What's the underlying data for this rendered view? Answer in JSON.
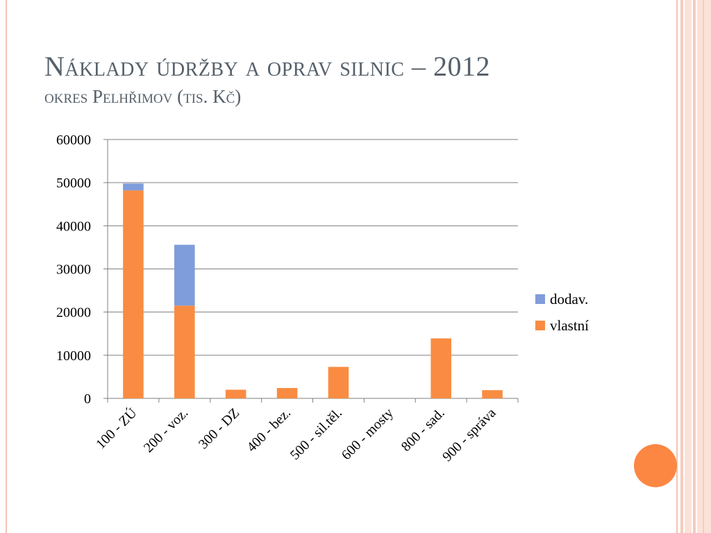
{
  "slide": {
    "title": "Náklady údržby a oprav silnic – 2012",
    "subtitle": "okres Pelhřimov (tis. Kč)"
  },
  "colors": {
    "vlastni": "#f98c42",
    "dodav": "#7f9ddb",
    "accent_circle": "#fc8743",
    "stripe": "#f6cbbb"
  },
  "chart_data": {
    "type": "bar",
    "stacked": true,
    "categories": [
      "100 - ZÚ",
      "200 - voz.",
      "300 - DZ",
      "400 - bez.",
      "500 - sil.těl.",
      "600 - mosty",
      "800 - sad.",
      "900 - správa"
    ],
    "series": [
      {
        "name": "vlastní",
        "values": [
          48200,
          21500,
          2000,
          2400,
          7300,
          0,
          13900,
          1900
        ]
      },
      {
        "name": "dodav.",
        "values": [
          1600,
          14100,
          0,
          0,
          0,
          0,
          0,
          0
        ]
      }
    ],
    "yticks": [
      "0",
      "10000",
      "20000",
      "30000",
      "40000",
      "50000",
      "60000"
    ],
    "ylim": [
      0,
      60000
    ],
    "grid": true,
    "legend_position": "right",
    "legend": [
      "dodav.",
      "vlastní"
    ]
  }
}
